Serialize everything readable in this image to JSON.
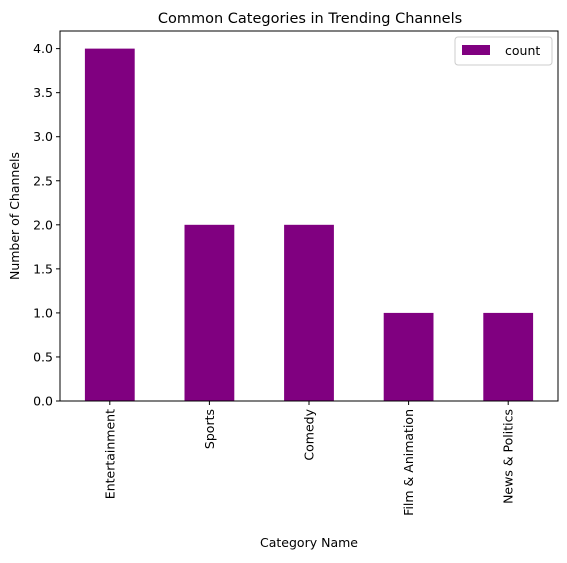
{
  "chart_data": {
    "type": "bar",
    "title": "Common Categories in Trending Channels",
    "xlabel": "Category Name",
    "ylabel": "Number of Channels",
    "categories": [
      "Entertainment",
      "Sports",
      "Comedy",
      "Film & Animation",
      "News & Politics"
    ],
    "series": [
      {
        "name": "count",
        "values": [
          4,
          2,
          2,
          1,
          1
        ],
        "color": "#800080"
      }
    ],
    "ylim": [
      0,
      4.2
    ],
    "yticks": [
      0.0,
      0.5,
      1.0,
      1.5,
      2.0,
      2.5,
      3.0,
      3.5,
      4.0
    ],
    "ytick_labels": [
      "0.0",
      "0.5",
      "1.0",
      "1.5",
      "2.0",
      "2.5",
      "3.0",
      "3.5",
      "4.0"
    ],
    "grid": false,
    "legend_position": "top-right"
  }
}
